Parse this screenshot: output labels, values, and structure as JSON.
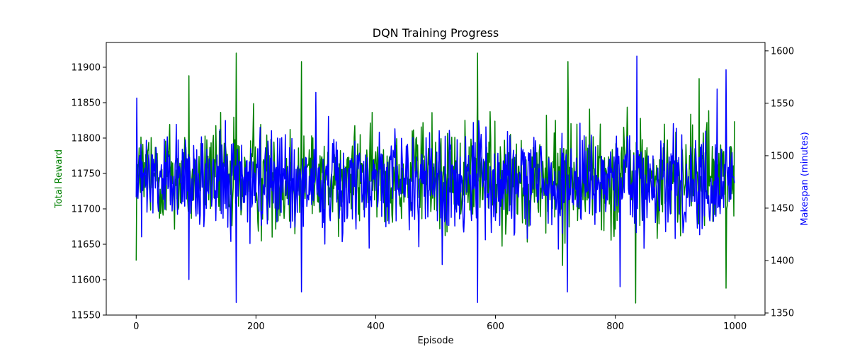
{
  "chart_data": {
    "type": "line",
    "title": "DQN Training Progress",
    "xlabel": "Episode",
    "ylabel_left": "Total Reward",
    "ylabel_right": "Makespan (minutes)",
    "xlim": [
      -50,
      1050
    ],
    "ylim_left": [
      11550,
      11935
    ],
    "ylim_right": [
      1348,
      1608
    ],
    "x_ticks": [
      0,
      200,
      400,
      600,
      800,
      1000
    ],
    "y_ticks_left": [
      11550,
      11600,
      11650,
      11700,
      11750,
      11800,
      11850,
      11900
    ],
    "y_ticks_right": [
      1350,
      1400,
      1450,
      1500,
      1550,
      1600
    ],
    "grid": false,
    "episodes": {
      "start": 0,
      "end": 999,
      "count": 1000
    },
    "series": [
      {
        "name": "Total Reward",
        "axis": "left",
        "color": "#008000",
        "approx_range": [
          11567,
          11920
        ],
        "typical_band": [
          11660,
          11830
        ],
        "peaks": [
          {
            "x": 167,
            "y": 11920
          },
          {
            "x": 570,
            "y": 11920
          },
          {
            "x": 276,
            "y": 11908
          },
          {
            "x": 721,
            "y": 11908
          },
          {
            "x": 88,
            "y": 11888
          },
          {
            "x": 940,
            "y": 11884
          }
        ],
        "troughs": [
          {
            "x": 834,
            "y": 11567
          },
          {
            "x": 985,
            "y": 11588
          },
          {
            "x": 712,
            "y": 11620
          },
          {
            "x": 0,
            "y": 11627
          }
        ]
      },
      {
        "name": "Makespan (minutes)",
        "axis": "right",
        "color": "#0000ff",
        "approx_range": [
          1360,
          1595
        ],
        "typical_band": [
          1420,
          1530
        ],
        "peaks": [
          {
            "x": 836,
            "y": 1595
          },
          {
            "x": 985,
            "y": 1582
          },
          {
            "x": 1,
            "y": 1555
          }
        ],
        "troughs": [
          {
            "x": 167,
            "y": 1360
          },
          {
            "x": 570,
            "y": 1360
          },
          {
            "x": 276,
            "y": 1370
          },
          {
            "x": 720,
            "y": 1370
          },
          {
            "x": 808,
            "y": 1375
          },
          {
            "x": 88,
            "y": 1382
          }
        ]
      }
    ]
  }
}
